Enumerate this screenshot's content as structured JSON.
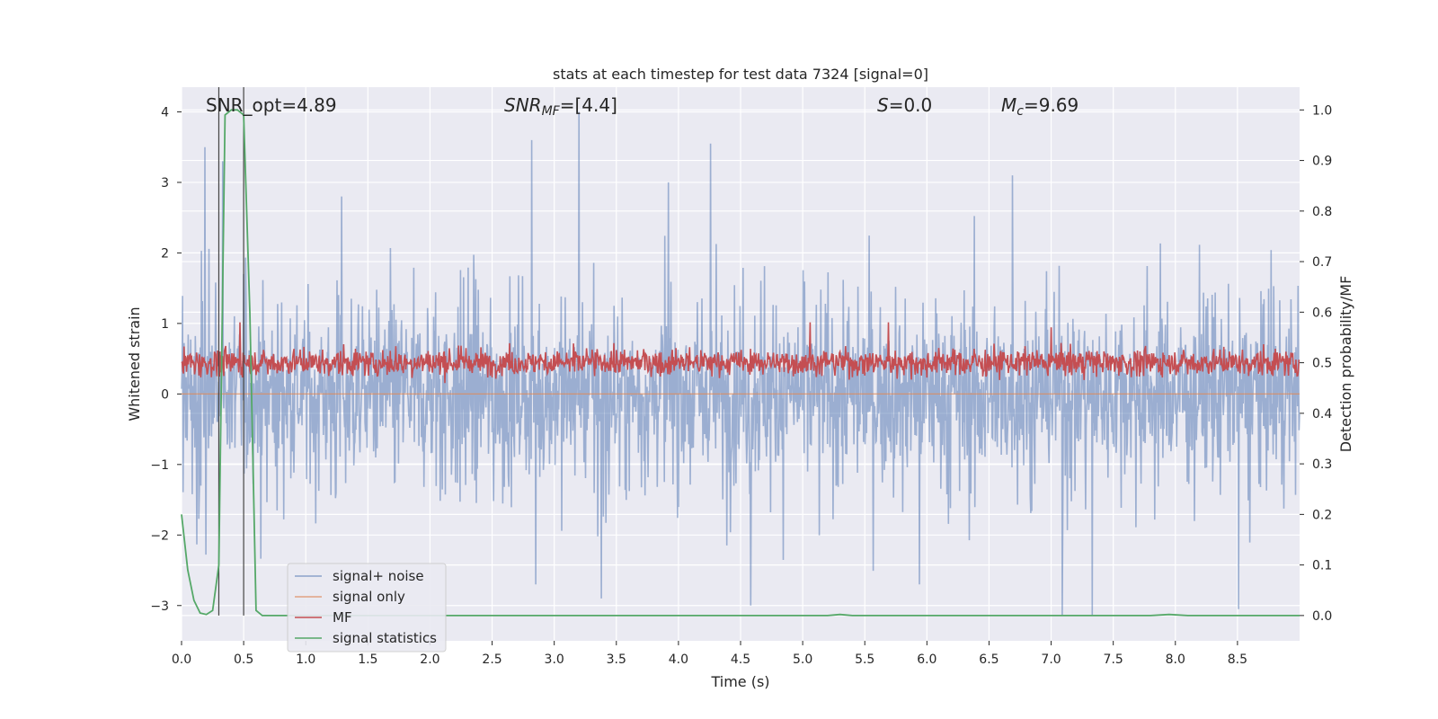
{
  "chart_data": {
    "type": "line",
    "title": "stats at each timestep for test data 7324 [signal=0]",
    "xlabel": "Time (s)",
    "ylabel": "Whitened strain",
    "ylabel_right": "Detection probability/MF",
    "xlim": [
      0,
      9.0
    ],
    "ylim": [
      -3.5,
      4.35
    ],
    "ylim_right": [
      -0.05,
      1.045
    ],
    "xticks": [
      0.0,
      0.5,
      1.0,
      1.5,
      2.0,
      2.5,
      3.0,
      3.5,
      4.0,
      4.5,
      5.0,
      5.5,
      6.0,
      6.5,
      7.0,
      7.5,
      8.0,
      8.5
    ],
    "xtick_labels": [
      "0.0",
      "0.5",
      "1.0",
      "1.5",
      "2.0",
      "2.5",
      "3.0",
      "3.5",
      "4.0",
      "4.5",
      "5.0",
      "5.5",
      "6.0",
      "6.5",
      "7.0",
      "7.5",
      "8.0",
      "8.5"
    ],
    "yticks": [
      -3,
      -2,
      -1,
      0,
      1,
      2,
      3,
      4
    ],
    "ytick_labels": [
      "−3",
      "−2",
      "−1",
      "0",
      "1",
      "2",
      "3",
      "4"
    ],
    "yticks_right": [
      0.0,
      0.1,
      0.2,
      0.3,
      0.4,
      0.5,
      0.6,
      0.7,
      0.8,
      0.9,
      1.0
    ],
    "ytick_labels_right": [
      "0.0",
      "0.1",
      "0.2",
      "0.3",
      "0.4",
      "0.5",
      "0.6",
      "0.7",
      "0.8",
      "0.9",
      "1.0"
    ],
    "grid": true,
    "legend_position": "lower-left",
    "annotations": [
      {
        "text": "SNR_opt=4.89",
        "x": 0.19
      },
      {
        "text_main": "SNR",
        "text_sub": "MF",
        "text_rest": "=[4.4]",
        "x": 2.6,
        "italic": true
      },
      {
        "text_main": "S",
        "text_rest": "=0.0",
        "x": 5.6,
        "italic": true
      },
      {
        "text_main": "M",
        "text_sub": "c",
        "text_rest": "=9.69",
        "x": 6.6,
        "italic": true
      }
    ],
    "vlines": [
      0.3,
      0.5
    ],
    "series": [
      {
        "name": "signal+ noise",
        "color": "#4c72b0",
        "axis": "left",
        "description_values": "dense noise",
        "x_range": [
          0,
          9.0
        ],
        "sample_count": 2200,
        "envelope_typical": [
          -1.5,
          1.6
        ],
        "peaks": [
          {
            "x": 0.19,
            "y": 3.5
          },
          {
            "x": 0.33,
            "y": 3.3
          },
          {
            "x": 3.2,
            "y": 4.0
          },
          {
            "x": 2.82,
            "y": 3.6
          },
          {
            "x": 4.26,
            "y": 3.55
          },
          {
            "x": 3.92,
            "y": 3.0
          },
          {
            "x": 6.69,
            "y": 3.1
          },
          {
            "x": 1.29,
            "y": 2.8
          },
          {
            "x": 4.58,
            "y": -3.0
          },
          {
            "x": 7.09,
            "y": -3.15
          },
          {
            "x": 7.33,
            "y": -3.15
          },
          {
            "x": 3.38,
            "y": -2.9
          },
          {
            "x": 8.51,
            "y": -3.05
          },
          {
            "x": 2.85,
            "y": -2.7
          },
          {
            "x": 5.94,
            "y": -2.7
          }
        ]
      },
      {
        "name": "signal only",
        "color": "#dd8452",
        "axis": "left",
        "values_note": "flat at zero",
        "x": [
          0,
          9.0
        ],
        "y": [
          0,
          0
        ]
      },
      {
        "name": "MF",
        "color": "#c44e52",
        "axis": "right",
        "x_range": [
          0,
          9.0
        ],
        "baseline": 0.5,
        "range_typical": [
          0.45,
          0.55
        ],
        "peaks": [
          {
            "x": 0.47,
            "y": 0.58
          },
          {
            "x": 5.69,
            "y": 0.58
          },
          {
            "x": 5.06,
            "y": 0.58
          },
          {
            "x": 7.0,
            "y": 0.57
          }
        ]
      },
      {
        "name": "signal statistics",
        "color": "#55a868",
        "axis": "right",
        "x": [
          0.0,
          0.05,
          0.1,
          0.15,
          0.2,
          0.25,
          0.3,
          0.35,
          0.4,
          0.45,
          0.5,
          0.55,
          0.6,
          0.65,
          0.7,
          1.0,
          2.0,
          3.0,
          4.0,
          5.0,
          5.2,
          5.3,
          5.4,
          6.0,
          7.0,
          7.8,
          7.95,
          8.1,
          9.0
        ],
        "y": [
          0.2,
          0.09,
          0.03,
          0.005,
          0.002,
          0.01,
          0.1,
          0.99,
          1.0,
          1.0,
          0.99,
          0.6,
          0.01,
          0.0,
          0.0,
          0.0,
          0.0,
          0.0,
          0.0,
          0.0,
          0.0,
          0.002,
          0.0,
          0.0,
          0.0,
          0.0,
          0.002,
          0.0,
          0.0
        ]
      }
    ]
  }
}
